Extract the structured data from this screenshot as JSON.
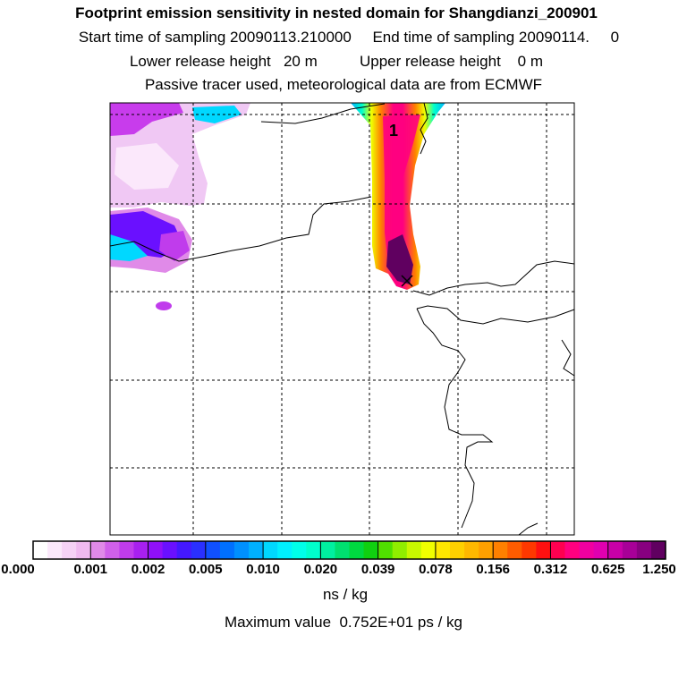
{
  "title": "Footprint emission sensitivity in nested domain for Shangdianzi_200901",
  "sampling_line": "Start time of sampling 20090113.210000     End time of sampling 20090114.     0",
  "release_line": "Lower release height   20 m          Upper release height    0 m",
  "tracer_line": "Passive tracer used, meteorological data are from ECMWF",
  "station_marker": "1",
  "colorbar": {
    "tick_labels": [
      "0.000",
      "0.001",
      "0.002",
      "0.005",
      "0.010",
      "0.020",
      "0.039",
      "0.078",
      "0.156",
      "0.312",
      "0.625",
      "1.250"
    ],
    "units": "ns / kg",
    "colors": [
      "#ffffff",
      "#fbe8fb",
      "#f6d2f6",
      "#f0baf0",
      "#e08ae8",
      "#d060ea",
      "#c03cec",
      "#a820f0",
      "#9010f8",
      "#6a10ff",
      "#4418ff",
      "#2a30ff",
      "#1050ff",
      "#0070ff",
      "#0090ff",
      "#00b0ff",
      "#00d8ff",
      "#00f0ff",
      "#00ffea",
      "#00ffcc",
      "#00f0a0",
      "#00e070",
      "#00d840",
      "#10d010",
      "#50e000",
      "#90ee00",
      "#c8f800",
      "#f0ff00",
      "#ffe800",
      "#ffd000",
      "#ffb800",
      "#ffa000",
      "#ff8000",
      "#ff5c00",
      "#ff3800",
      "#ff1010",
      "#ff0050",
      "#ff0080",
      "#f000a0",
      "#e000b0",
      "#c800a8",
      "#a80098",
      "#880080",
      "#600060"
    ]
  },
  "maximum_line": "Maximum value  0.752E+01 ps / kg"
}
